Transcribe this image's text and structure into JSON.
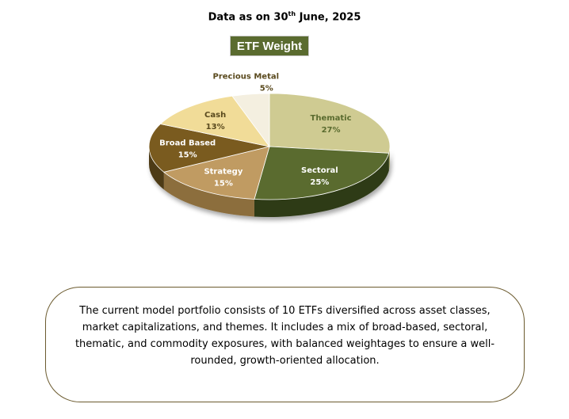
{
  "header": {
    "prefix": "Data as on 30",
    "superscript": "th",
    "suffix": " June, 2025"
  },
  "chart_title": "ETF Weight",
  "chart_data": {
    "type": "pie",
    "title": "ETF Weight",
    "slices": [
      {
        "label": "Thematic",
        "value": 27,
        "value_label": "27%",
        "color": "#cfcb92",
        "side_color": "#a8a46c",
        "label_color": "#5a6b2f"
      },
      {
        "label": "Sectoral",
        "value": 25,
        "value_label": "25%",
        "color": "#5a6b2f",
        "side_color": "#2f3a17",
        "label_color": "#ffffff"
      },
      {
        "label": "Strategy",
        "value": 15,
        "value_label": "15%",
        "color": "#c09b62",
        "side_color": "#8c6e3e",
        "label_color": "#ffffff"
      },
      {
        "label": "Broad Based",
        "value": 15,
        "value_label": "15%",
        "color": "#7a5b1f",
        "side_color": "#4e3a12",
        "label_color": "#ffffff"
      },
      {
        "label": "Cash",
        "value": 13,
        "value_label": "13%",
        "color": "#f1dc98",
        "side_color": "#c9b577",
        "label_color": "#5a4a1e"
      },
      {
        "label": "Precious Metal",
        "value": 5,
        "value_label": "5%",
        "color": "#f4efe0",
        "side_color": "#cfc8b3",
        "label_color": "#5a4a1e"
      }
    ],
    "start_angle_deg": -90,
    "direction": "clockwise",
    "style": "3d-tilted"
  },
  "description": "The current model portfolio consists of 10 ETFs diversified across asset classes, market capitalizations, and themes. It includes a mix of broad-based, sectoral, thematic, and commodity exposures, with balanced weightages to ensure a well-rounded, growth-oriented allocation."
}
